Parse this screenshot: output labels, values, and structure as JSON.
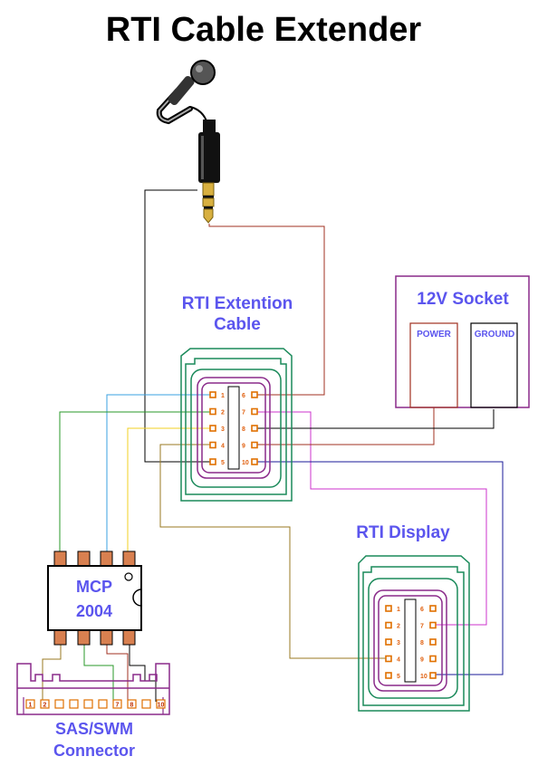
{
  "title": "RTI Cable Extender",
  "extension_cable": {
    "line1": "RTI Extention",
    "line2": "Cable",
    "pins": [
      "1",
      "2",
      "3",
      "4",
      "5",
      "6",
      "7",
      "8",
      "9",
      "10"
    ]
  },
  "socket": {
    "title": "12V Socket",
    "power": "POWER",
    "ground": "GROUND"
  },
  "display": {
    "title": "RTI Display",
    "pins": [
      "1",
      "2",
      "3",
      "4",
      "5",
      "6",
      "7",
      "8",
      "9",
      "10"
    ]
  },
  "mcp": {
    "line1": "MCP",
    "line2": "2004"
  },
  "sas": {
    "line1": "SAS/SWM",
    "line2": "Connector",
    "pins": [
      "1",
      "2",
      "7",
      "8",
      "10"
    ]
  },
  "colors": {
    "label": "#5b55ee",
    "connector_outer": "#1a8a5a",
    "connector_inner": "#8a2a8a",
    "pin": "#e07000",
    "wire_blue": "#3aa0e0",
    "wire_green": "#2a9a2a",
    "wire_yellow": "#f0d020",
    "wire_olive": "#9a7a20",
    "wire_magenta": "#cc33cc",
    "wire_navy": "#1a1a99",
    "wire_brown": "#a03020",
    "wire_black": "#000000"
  },
  "icons": {
    "microphone": "microphone-icon",
    "audio_jack": "audio-jack-icon"
  }
}
